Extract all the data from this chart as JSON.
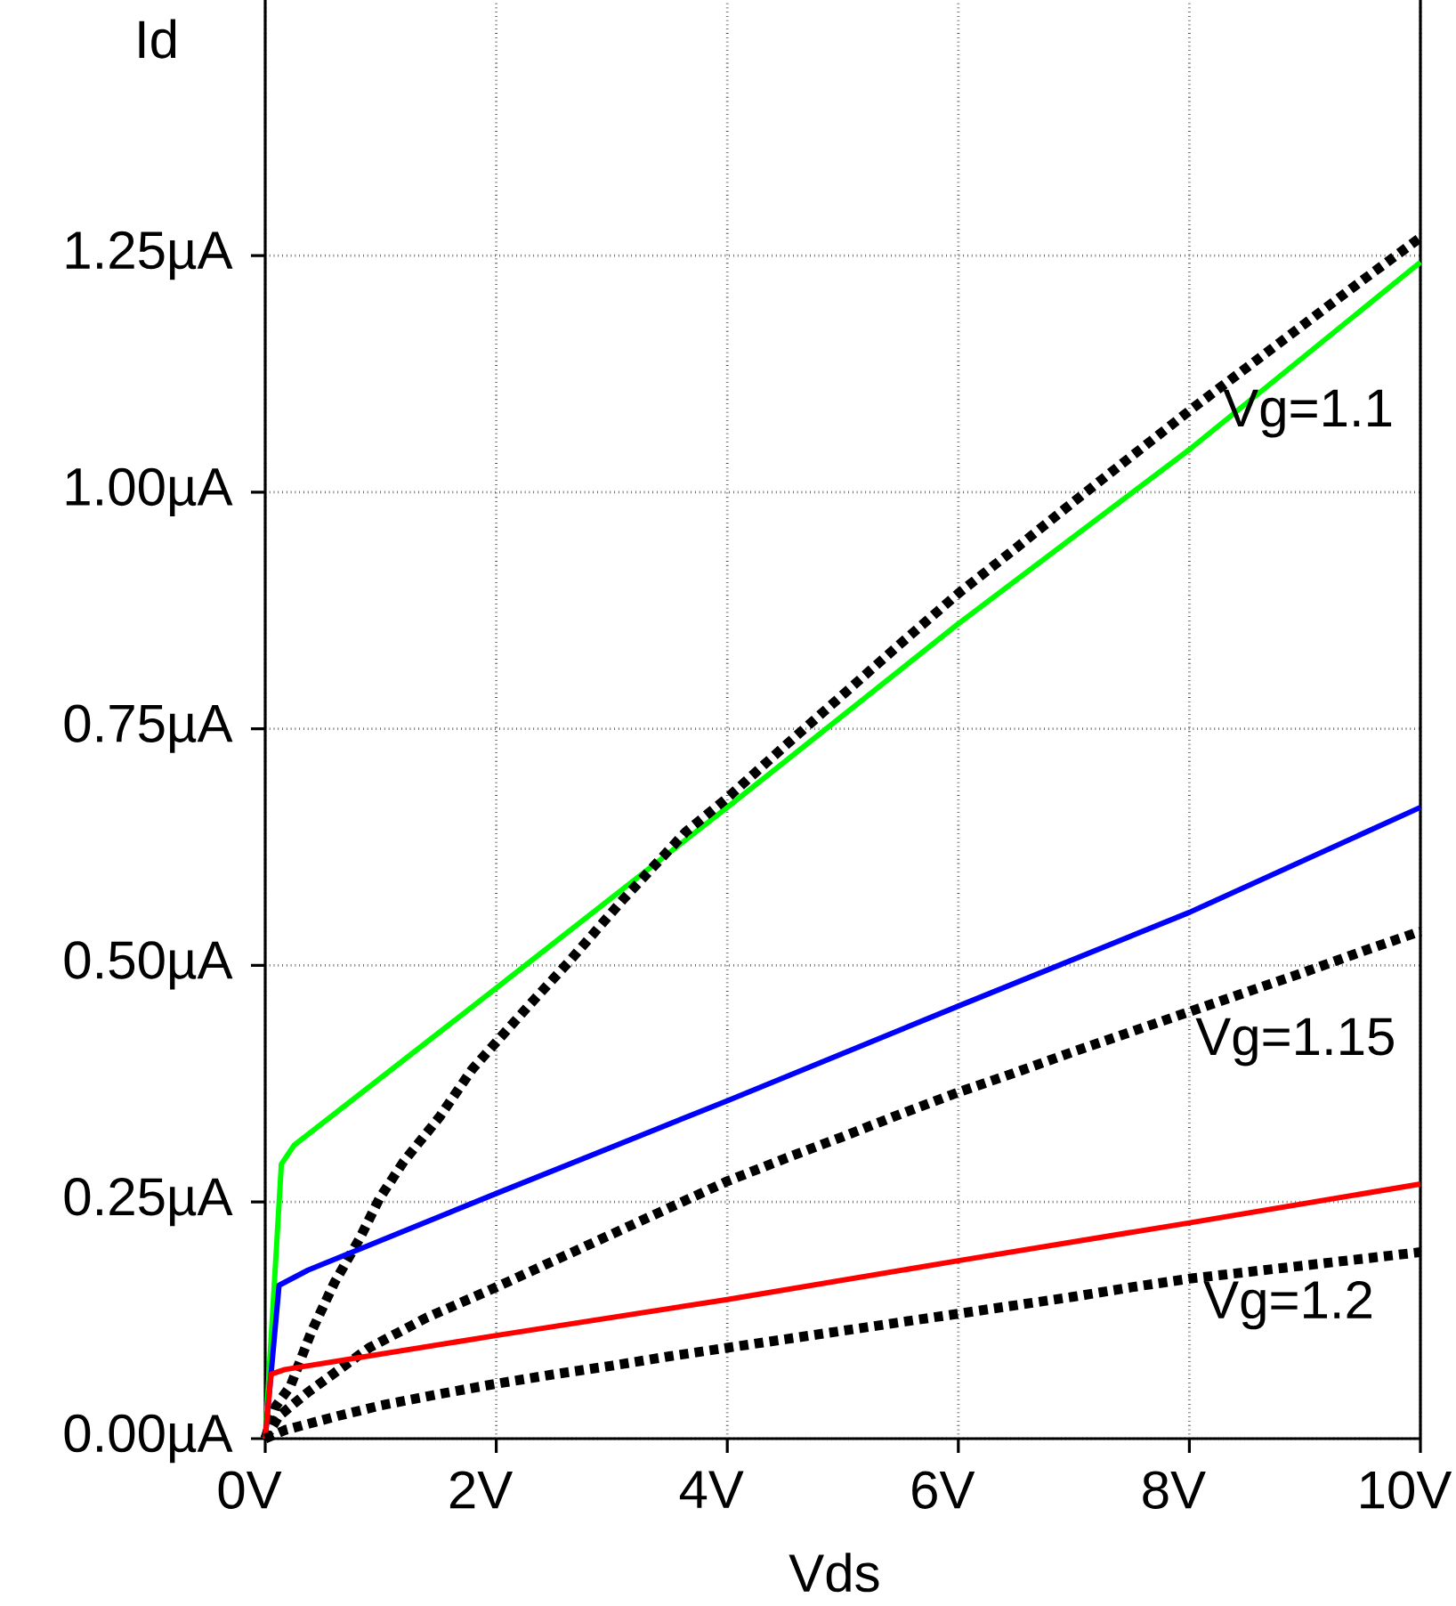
{
  "chart_data": {
    "type": "line",
    "xlabel": "Vds",
    "ylabel": "Id",
    "xlim": [
      0,
      10
    ],
    "ylim": [
      0,
      1.52
    ],
    "xticks": [
      {
        "value": 0,
        "label": "0V"
      },
      {
        "value": 2,
        "label": "2V"
      },
      {
        "value": 4,
        "label": "4V"
      },
      {
        "value": 6,
        "label": "6V"
      },
      {
        "value": 8,
        "label": "8V"
      },
      {
        "value": 10,
        "label": "10V"
      }
    ],
    "yticks": [
      {
        "value": 0,
        "label": "0.00µA"
      },
      {
        "value": 0.25,
        "label": "0.25µA"
      },
      {
        "value": 0.5,
        "label": "0.50µA"
      },
      {
        "value": 0.75,
        "label": "0.75µA"
      },
      {
        "value": 1.0,
        "label": "1.00µA"
      },
      {
        "value": 1.25,
        "label": "1.25µA"
      }
    ],
    "grid": true,
    "series": [
      {
        "color": "#00ff00",
        "line_style": "solid",
        "x": [
          0,
          0.14,
          0.25,
          2,
          4,
          6,
          8,
          10
        ],
        "values": [
          0,
          0.29,
          0.31,
          0.476,
          0.667,
          0.861,
          1.045,
          1.243
        ]
      },
      {
        "color": "#000000",
        "line_style": "dotted",
        "x": [
          0,
          0.09,
          0.22,
          0.4,
          0.6,
          0.82,
          0.99,
          1.2,
          1.51,
          1.79,
          2.0,
          2.3,
          2.63,
          3.1,
          3.64,
          4,
          4.5,
          5,
          5.5,
          6,
          6.5,
          7,
          7.5,
          8,
          8.5,
          9,
          9.5,
          10
        ],
        "values": [
          0,
          0.034,
          0.056,
          0.113,
          0.165,
          0.212,
          0.254,
          0.293,
          0.34,
          0.39,
          0.419,
          0.46,
          0.504,
          0.57,
          0.641,
          0.677,
          0.732,
          0.786,
          0.84,
          0.893,
          0.941,
          0.99,
          1.038,
          1.086,
          1.132,
          1.178,
          1.224,
          1.269
        ]
      },
      {
        "color": "#0000ff",
        "line_style": "solid",
        "x": [
          0,
          0.12,
          0.37,
          2,
          4,
          6,
          8,
          10
        ],
        "values": [
          0,
          0.162,
          0.178,
          0.259,
          0.357,
          0.457,
          0.556,
          0.667
        ]
      },
      {
        "color": "#000000",
        "line_style": "dotted",
        "x": [
          0,
          0.12,
          0.37,
          0.9,
          1.4,
          2,
          2.5,
          3,
          3.5,
          4,
          4.5,
          5,
          5.5,
          6,
          6.5,
          7,
          7.5,
          8,
          8.5,
          9,
          9.5,
          10
        ],
        "values": [
          0,
          0.024,
          0.049,
          0.096,
          0.128,
          0.16,
          0.188,
          0.216,
          0.244,
          0.272,
          0.296,
          0.319,
          0.343,
          0.366,
          0.387,
          0.409,
          0.43,
          0.451,
          0.472,
          0.493,
          0.515,
          0.536
        ]
      },
      {
        "color": "#ff0000",
        "line_style": "solid",
        "x": [
          0,
          0.05,
          0.17,
          2,
          4,
          6,
          8,
          10
        ],
        "values": [
          0,
          0.068,
          0.073,
          0.109,
          0.147,
          0.188,
          0.228,
          0.269
        ]
      },
      {
        "color": "#000000",
        "line_style": "dotted",
        "x": [
          0,
          0.17,
          0.63,
          1,
          1.5,
          2,
          2.5,
          3,
          3.5,
          4,
          4.5,
          5,
          5.5,
          6,
          6.5,
          7,
          7.5,
          8,
          8.5,
          9,
          9.5,
          10
        ],
        "values": [
          0,
          0.009,
          0.024,
          0.035,
          0.047,
          0.058,
          0.068,
          0.077,
          0.087,
          0.096,
          0.105,
          0.114,
          0.123,
          0.132,
          0.141,
          0.15,
          0.16,
          0.169,
          0.176,
          0.183,
          0.19,
          0.197
        ]
      }
    ],
    "annotations": [
      "Vg=1.1",
      "Vg=1.15",
      "Vg=1.2"
    ]
  }
}
